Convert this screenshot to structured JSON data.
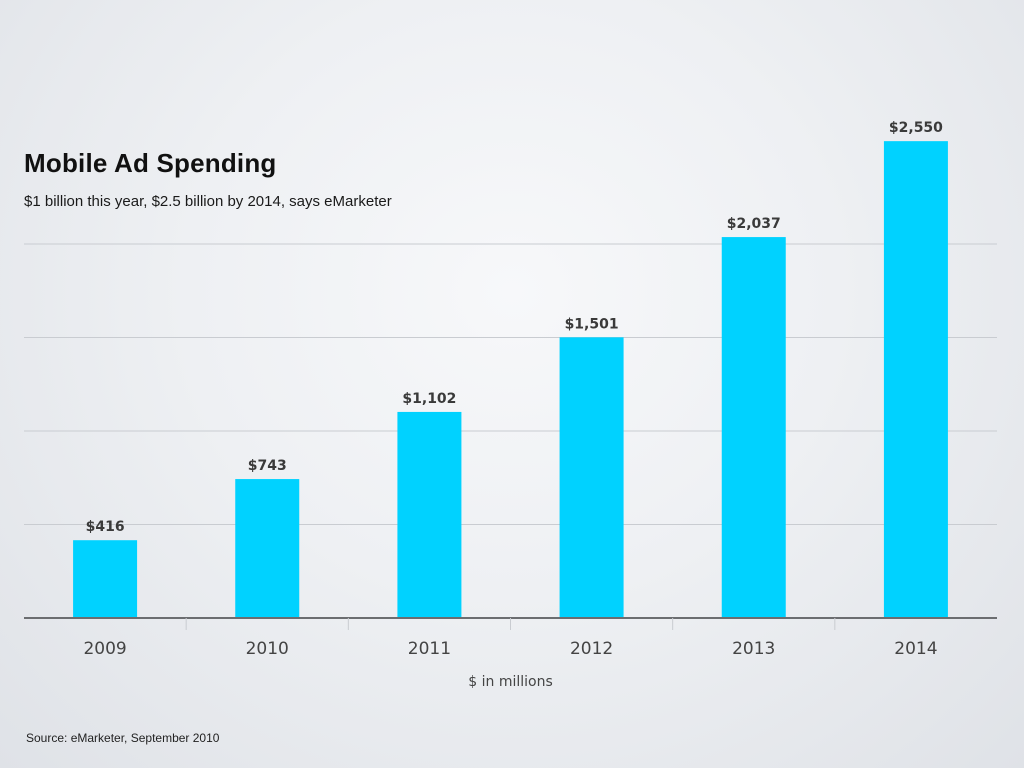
{
  "header": {
    "title": "Mobile Ad Spending",
    "subtitle": "$1 billion this year, $2.5 billion by 2014, says eMarketer"
  },
  "footer": {
    "source": "Source: eMarketer, September 2010"
  },
  "colors": {
    "bar": "#00d2ff",
    "grid": "#c9ccd1",
    "baseline": "#6b6d70"
  },
  "chart_data": {
    "type": "bar",
    "title": "Mobile Ad Spending",
    "subtitle": "$1 billion this year, $2.5 billion by 2014, says eMarketer",
    "categories": [
      "2009",
      "2010",
      "2011",
      "2012",
      "2013",
      "2014"
    ],
    "values": [
      416,
      743,
      1102,
      1501,
      2037,
      2550
    ],
    "value_labels": [
      "$416",
      "$743",
      "$1,102",
      "$1,501",
      "$2,037",
      "$2,550"
    ],
    "xlabel": "$ in millions",
    "ylabel": "",
    "ylim": [
      0,
      2000
    ],
    "grid": true
  }
}
